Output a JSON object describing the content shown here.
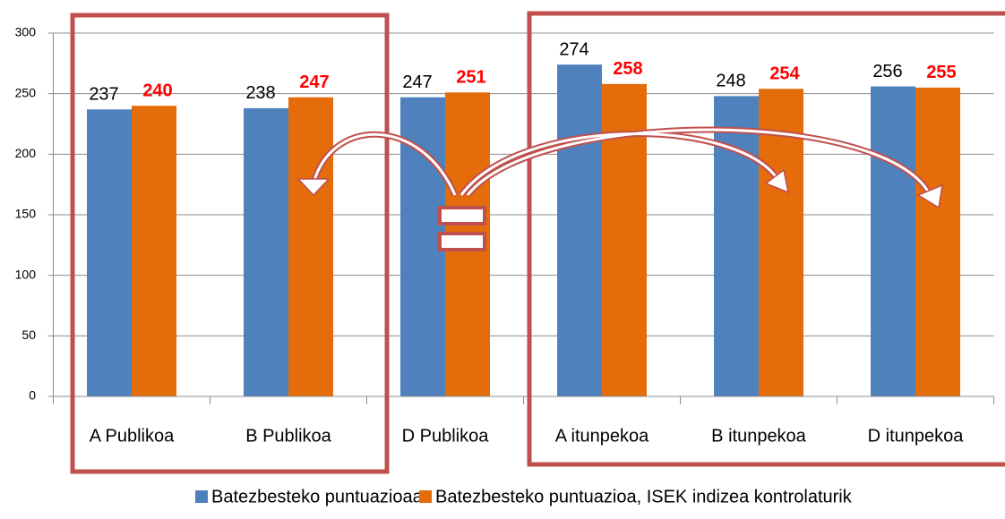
{
  "chart_data": {
    "type": "bar",
    "categories": [
      "A Publikoa",
      "B Publikoa",
      "D Publikoa",
      "A itunpekoa",
      "B itunpekoa",
      "D itunpekoa"
    ],
    "series": [
      {
        "name": "Batezbesteko puntuazioaa",
        "color": "#4f81bd",
        "label_color": "#000000",
        "label_bold": false,
        "values": [
          237,
          238,
          247,
          274,
          248,
          256
        ]
      },
      {
        "name": "Batezbesteko puntuazioa, ISEK indizea kontrolaturik",
        "color": "#e46c0a",
        "label_color": "#ff0000",
        "label_bold": true,
        "values": [
          240,
          247,
          251,
          258,
          254,
          255
        ]
      }
    ],
    "ylim": [
      0,
      300
    ],
    "yticks": [
      0,
      50,
      100,
      150,
      200,
      250,
      300
    ],
    "grid": true,
    "legend": "bottom"
  }
}
